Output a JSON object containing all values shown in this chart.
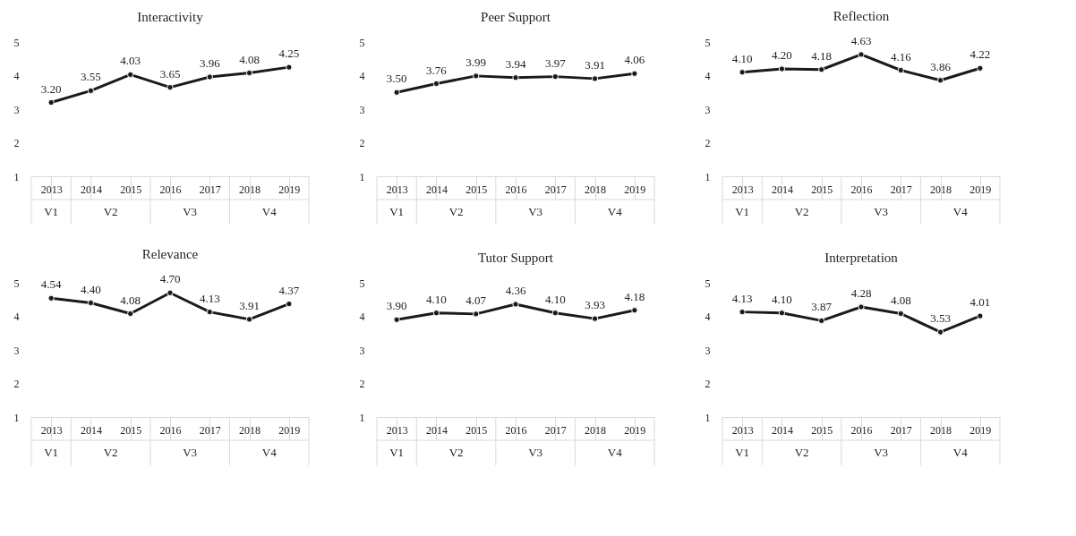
{
  "chart_data": [
    {
      "type": "line",
      "title": "Interactivity",
      "categories": [
        "2013",
        "2014",
        "2015",
        "2016",
        "2017",
        "2018",
        "2019"
      ],
      "values": [
        3.2,
        3.55,
        4.03,
        3.65,
        3.96,
        4.08,
        4.25
      ],
      "value_labels": [
        "3.20",
        "3.55",
        "4.03",
        "3.65",
        "3.96",
        "4.08",
        "4.25"
      ],
      "ylim": [
        1,
        5
      ],
      "yticks": [
        1,
        2,
        3,
        4,
        5
      ],
      "marker": "circle",
      "line_style": "solid",
      "grid": false,
      "color": "#1a1a1a",
      "annotations": [
        "V1",
        "V2",
        "V3",
        "V4"
      ]
    },
    {
      "type": "line",
      "title": "Peer Support",
      "categories": [
        "2013",
        "2014",
        "2015",
        "2016",
        "2017",
        "2018",
        "2019"
      ],
      "values": [
        3.5,
        3.76,
        3.99,
        3.94,
        3.97,
        3.91,
        4.06
      ],
      "value_labels": [
        "3.50",
        "3.76",
        "3.99",
        "3.94",
        "3.97",
        "3.91",
        "4.06"
      ],
      "ylim": [
        1,
        5
      ],
      "yticks": [
        1,
        2,
        3,
        4,
        5
      ],
      "marker": "circle",
      "line_style": "solid",
      "grid": false,
      "color": "#1a1a1a",
      "annotations": [
        "V1",
        "V2",
        "V3",
        "V4"
      ]
    },
    {
      "type": "line",
      "title": "Reflection",
      "categories": [
        "2013",
        "2014",
        "2015",
        "2016",
        "2017",
        "2018",
        "2019"
      ],
      "values": [
        4.1,
        4.2,
        4.18,
        4.63,
        4.16,
        3.86,
        4.22
      ],
      "value_labels": [
        "4.10",
        "4.20",
        "4.18",
        "4.63",
        "4.16",
        "3.86",
        "4.22"
      ],
      "ylim": [
        1,
        5
      ],
      "yticks": [
        1,
        2,
        3,
        4,
        5
      ],
      "marker": "circle",
      "line_style": "solid",
      "grid": false,
      "color": "#1a1a1a",
      "annotations": [
        "V1",
        "V2",
        "V3",
        "V4"
      ]
    },
    {
      "type": "line",
      "title": "Relevance",
      "categories": [
        "2013",
        "2014",
        "2015",
        "2016",
        "2017",
        "2018",
        "2019"
      ],
      "values": [
        4.54,
        4.4,
        4.08,
        4.7,
        4.13,
        3.91,
        4.37
      ],
      "value_labels": [
        "4.54",
        "4.40",
        "4.08",
        "4.70",
        "4.13",
        "3.91",
        "4.37"
      ],
      "ylim": [
        1,
        5
      ],
      "yticks": [
        1,
        2,
        3,
        4,
        5
      ],
      "marker": "circle",
      "line_style": "solid",
      "grid": false,
      "color": "#1a1a1a",
      "annotations": [
        "V1",
        "V2",
        "V3",
        "V4"
      ]
    },
    {
      "type": "line",
      "title": "Tutor Support",
      "categories": [
        "2013",
        "2014",
        "2015",
        "2016",
        "2017",
        "2018",
        "2019"
      ],
      "values": [
        3.9,
        4.1,
        4.07,
        4.36,
        4.1,
        3.93,
        4.18
      ],
      "value_labels": [
        "3.90",
        "4.10",
        "4.07",
        "4.36",
        "4.10",
        "3.93",
        "4.18"
      ],
      "ylim": [
        1,
        5
      ],
      "yticks": [
        1,
        2,
        3,
        4,
        5
      ],
      "marker": "circle",
      "line_style": "solid",
      "grid": false,
      "color": "#1a1a1a",
      "annotations": [
        "V1",
        "V2",
        "V3",
        "V4"
      ]
    },
    {
      "type": "line",
      "title": "Interpretation",
      "categories": [
        "2013",
        "2014",
        "2015",
        "2016",
        "2017",
        "2018",
        "2019"
      ],
      "values": [
        4.13,
        4.1,
        3.87,
        4.28,
        4.08,
        3.53,
        4.01
      ],
      "value_labels": [
        "4.13",
        "4.10",
        "3.87",
        "4.28",
        "4.08",
        "3.53",
        "4.01"
      ],
      "ylim": [
        1,
        5
      ],
      "yticks": [
        1,
        2,
        3,
        4,
        5
      ],
      "marker": "circle",
      "line_style": "solid",
      "grid": false,
      "color": "#1a1a1a",
      "annotations": [
        "V1",
        "V2",
        "V3",
        "V4"
      ]
    }
  ]
}
